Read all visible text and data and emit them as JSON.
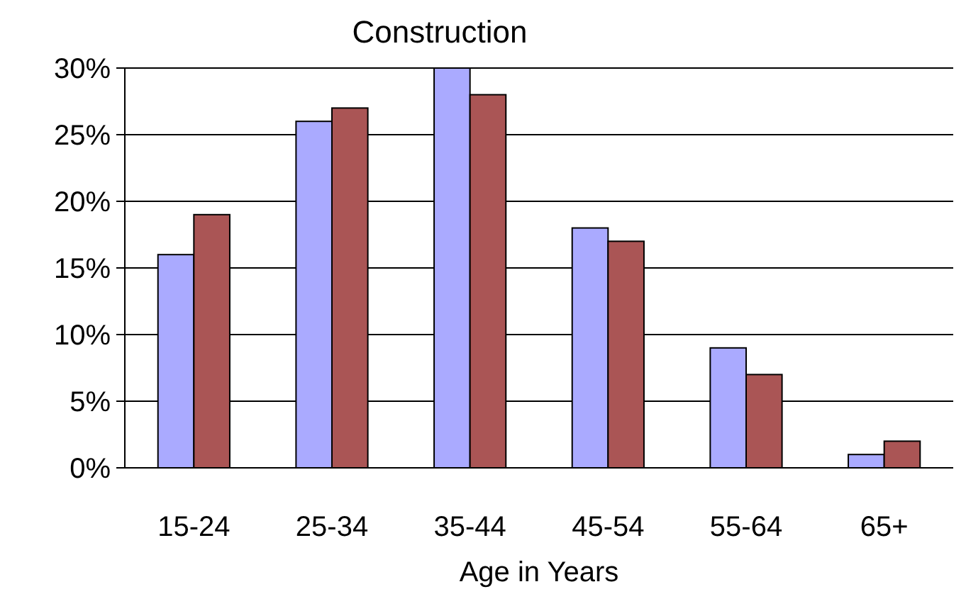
{
  "chart_data": {
    "type": "bar",
    "title": "Construction",
    "xlabel": "Age in Years",
    "categories": [
      "15-24",
      "25-34",
      "35-44",
      "45-54",
      "55-64",
      "65+"
    ],
    "series": [
      {
        "color": "#aaaaff",
        "values": [
          16,
          26,
          30,
          18,
          9,
          1
        ]
      },
      {
        "color": "#aa5555",
        "values": [
          19,
          27,
          28,
          17,
          7,
          2
        ]
      }
    ],
    "ylim": [
      0,
      30
    ],
    "yticks": [
      {
        "value": 0,
        "label": "0%"
      },
      {
        "value": 5,
        "label": "5%"
      },
      {
        "value": 10,
        "label": "10%"
      },
      {
        "value": 15,
        "label": "15%"
      },
      {
        "value": 20,
        "label": "20%"
      },
      {
        "value": 25,
        "label": "25%"
      },
      {
        "value": 30,
        "label": "30%"
      }
    ],
    "grid": "y"
  }
}
